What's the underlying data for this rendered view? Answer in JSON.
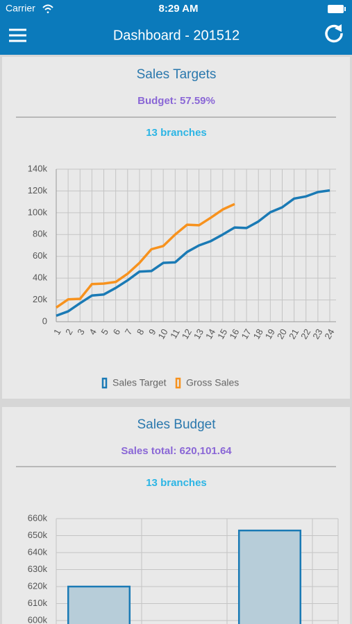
{
  "status_bar": {
    "carrier": "Carrier",
    "time": "8:29 AM"
  },
  "header": {
    "title": "Dashboard - 201512"
  },
  "chart_data": [
    {
      "type": "line",
      "title": "Sales Targets",
      "subtitle": "Budget: 57.59%",
      "annotation": "13 branches",
      "categories": [
        "1",
        "2",
        "3",
        "4",
        "5",
        "6",
        "7",
        "8",
        "9",
        "10",
        "11",
        "12",
        "13",
        "14",
        "15",
        "16",
        "17",
        "18",
        "19",
        "20",
        "21",
        "22",
        "23",
        "24"
      ],
      "series": [
        {
          "name": "Sales Target",
          "color": "#1a7ab5",
          "values": [
            5500,
            9500,
            17000,
            24000,
            25000,
            31000,
            38000,
            46000,
            46500,
            54000,
            54500,
            64000,
            70000,
            74000,
            80000,
            86500,
            86000,
            92000,
            100500,
            105000,
            113000,
            115000,
            119000,
            120500
          ]
        },
        {
          "name": "Gross Sales",
          "color": "#f7921e",
          "values": [
            13000,
            20500,
            21000,
            34500,
            35000,
            36500,
            44000,
            54000,
            66500,
            69500,
            80000,
            89000,
            88500,
            95500,
            103000,
            108000,
            null,
            null,
            null,
            null,
            null,
            null,
            null,
            null
          ]
        }
      ],
      "ylim": [
        0,
        140000
      ],
      "yticks": [
        0,
        {
          "value": 20000,
          "label": "20k"
        },
        {
          "value": 40000,
          "label": "40k"
        },
        {
          "value": 60000,
          "label": "60k"
        },
        {
          "value": 80000,
          "label": "80k"
        },
        {
          "value": 100000,
          "label": "100k"
        },
        {
          "value": 120000,
          "label": "120k"
        },
        {
          "value": 140000,
          "label": "140k"
        }
      ],
      "grid": true,
      "legend": "bottom"
    },
    {
      "type": "bar",
      "title": "Sales Budget",
      "subtitle": "Sales total: 620,101.64",
      "annotation": "13 branches",
      "categories": [
        null,
        null,
        null
      ],
      "values": [
        620000,
        null,
        653000
      ],
      "color": "#b7cdd9",
      "ylim": [
        600000,
        660000
      ],
      "yticks": [
        {
          "value": 600000,
          "label": "600k"
        },
        {
          "value": 610000,
          "label": "610k"
        },
        {
          "value": 620000,
          "label": "620k"
        },
        {
          "value": 630000,
          "label": "630k"
        },
        {
          "value": 640000,
          "label": "640k"
        },
        {
          "value": 650000,
          "label": "650k"
        },
        {
          "value": 660000,
          "label": "660k"
        }
      ],
      "grid": true
    }
  ]
}
